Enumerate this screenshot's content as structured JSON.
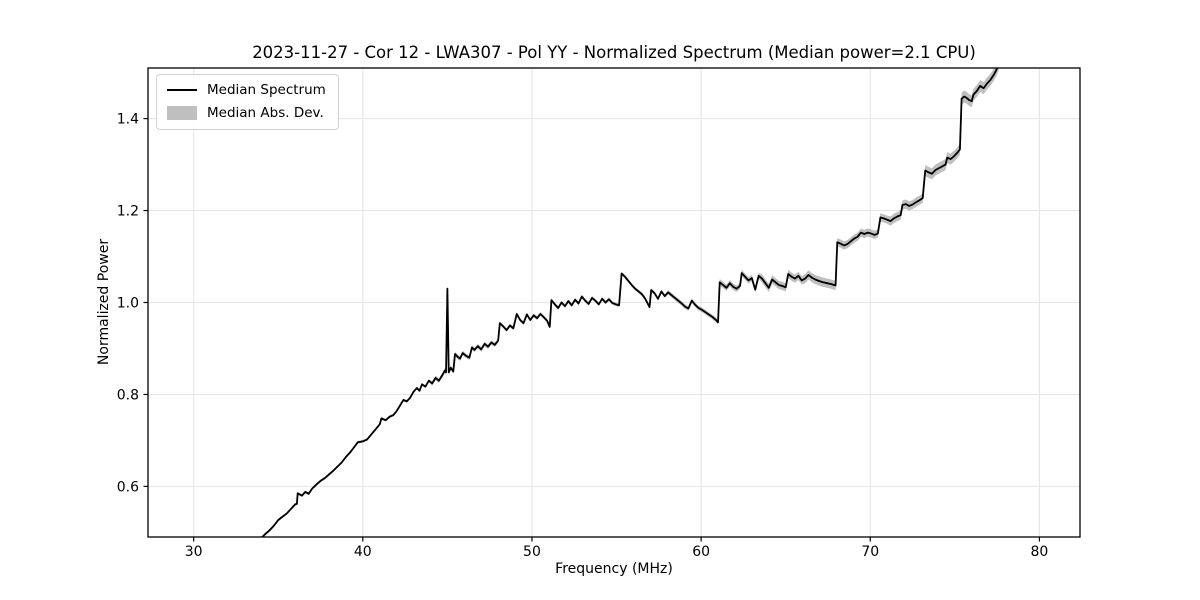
{
  "figure": {
    "title": "2023-11-27 - Cor 12 - LWA307 - Pol YY - Normalized Spectrum (Median power=2.1 CPU)",
    "xlabel": "Frequency (MHz)",
    "ylabel": "Normalized Power",
    "legend": [
      {
        "label": "Median Spectrum",
        "sample": "line",
        "color": "#000000"
      },
      {
        "label": "Median Abs. Dev.",
        "sample": "patch",
        "color": "#bfbfbf"
      }
    ],
    "colors": {
      "line": "#000000",
      "band": "#808080",
      "band_opacity": 0.5,
      "grid": "#e4e4e4",
      "spine": "#000000",
      "background": "#ffffff"
    }
  },
  "chart_data": {
    "type": "line",
    "title": "2023-11-27 - Cor 12 - LWA307 - Pol YY - Normalized Spectrum (Median power=2.1 CPU)",
    "xlabel": "Frequency (MHz)",
    "ylabel": "Normalized Power",
    "median_power_cpu": 2.1,
    "xlim": [
      27.3,
      82.4
    ],
    "ylim": [
      0.49,
      1.51
    ],
    "x_ticks": [
      30,
      40,
      50,
      60,
      70,
      80
    ],
    "y_ticks": [
      0.6,
      0.8,
      1.0,
      1.2,
      1.4
    ],
    "grid": true,
    "legend_position": "upper left",
    "series": [
      {
        "name": "Median Spectrum",
        "points": [
          [
            34.0,
            0.488
          ],
          [
            34.25,
            0.497
          ],
          [
            34.5,
            0.505
          ],
          [
            34.75,
            0.515
          ],
          [
            35.0,
            0.527
          ],
          [
            35.25,
            0.534
          ],
          [
            35.5,
            0.541
          ],
          [
            35.75,
            0.551
          ],
          [
            36.0,
            0.561
          ],
          [
            36.1,
            0.562
          ],
          [
            36.15,
            0.585
          ],
          [
            36.4,
            0.58
          ],
          [
            36.6,
            0.588
          ],
          [
            36.8,
            0.584
          ],
          [
            37.0,
            0.595
          ],
          [
            37.25,
            0.604
          ],
          [
            37.5,
            0.612
          ],
          [
            37.75,
            0.618
          ],
          [
            38.0,
            0.626
          ],
          [
            38.25,
            0.634
          ],
          [
            38.5,
            0.643
          ],
          [
            38.75,
            0.652
          ],
          [
            39.0,
            0.664
          ],
          [
            39.25,
            0.674
          ],
          [
            39.5,
            0.686
          ],
          [
            39.7,
            0.696
          ],
          [
            40.0,
            0.698
          ],
          [
            40.25,
            0.702
          ],
          [
            40.5,
            0.713
          ],
          [
            40.75,
            0.724
          ],
          [
            41.0,
            0.735
          ],
          [
            41.1,
            0.748
          ],
          [
            41.35,
            0.744
          ],
          [
            41.6,
            0.752
          ],
          [
            41.8,
            0.755
          ],
          [
            42.0,
            0.764
          ],
          [
            42.2,
            0.776
          ],
          [
            42.4,
            0.788
          ],
          [
            42.6,
            0.785
          ],
          [
            42.8,
            0.793
          ],
          [
            43.0,
            0.806
          ],
          [
            43.2,
            0.814
          ],
          [
            43.35,
            0.808
          ],
          [
            43.5,
            0.822
          ],
          [
            43.7,
            0.817
          ],
          [
            43.9,
            0.83
          ],
          [
            44.1,
            0.824
          ],
          [
            44.3,
            0.836
          ],
          [
            44.5,
            0.83
          ],
          [
            44.7,
            0.842
          ],
          [
            44.85,
            0.852
          ],
          [
            44.92,
            0.848
          ],
          [
            45.0,
            1.03
          ],
          [
            45.08,
            0.848
          ],
          [
            45.2,
            0.858
          ],
          [
            45.35,
            0.85
          ],
          [
            45.45,
            0.888
          ],
          [
            45.6,
            0.882
          ],
          [
            45.75,
            0.878
          ],
          [
            45.9,
            0.89
          ],
          [
            46.1,
            0.884
          ],
          [
            46.3,
            0.88
          ],
          [
            46.45,
            0.902
          ],
          [
            46.6,
            0.897
          ],
          [
            46.8,
            0.905
          ],
          [
            47.0,
            0.898
          ],
          [
            47.2,
            0.91
          ],
          [
            47.4,
            0.904
          ],
          [
            47.6,
            0.913
          ],
          [
            47.8,
            0.908
          ],
          [
            48.0,
            0.917
          ],
          [
            48.1,
            0.955
          ],
          [
            48.3,
            0.948
          ],
          [
            48.5,
            0.94
          ],
          [
            48.7,
            0.95
          ],
          [
            48.9,
            0.944
          ],
          [
            49.1,
            0.975
          ],
          [
            49.3,
            0.962
          ],
          [
            49.5,
            0.955
          ],
          [
            49.7,
            0.974
          ],
          [
            49.9,
            0.962
          ],
          [
            50.1,
            0.972
          ],
          [
            50.3,
            0.966
          ],
          [
            50.5,
            0.975
          ],
          [
            50.7,
            0.968
          ],
          [
            50.9,
            0.96
          ],
          [
            51.05,
            0.947
          ],
          [
            51.15,
            1.005
          ],
          [
            51.35,
            0.996
          ],
          [
            51.55,
            0.988
          ],
          [
            51.75,
            1.0
          ],
          [
            51.95,
            0.992
          ],
          [
            52.15,
            1.003
          ],
          [
            52.35,
            0.994
          ],
          [
            52.55,
            1.006
          ],
          [
            52.75,
            0.998
          ],
          [
            52.95,
            1.013
          ],
          [
            53.15,
            1.004
          ],
          [
            53.35,
            0.997
          ],
          [
            53.55,
            1.01
          ],
          [
            53.75,
            1.004
          ],
          [
            53.95,
            0.996
          ],
          [
            54.15,
            1.008
          ],
          [
            54.35,
            1.0
          ],
          [
            54.55,
            1.007
          ],
          [
            54.75,
            0.999
          ],
          [
            54.95,
            0.996
          ],
          [
            55.15,
            0.994
          ],
          [
            55.3,
            1.063
          ],
          [
            55.5,
            1.056
          ],
          [
            55.7,
            1.047
          ],
          [
            55.9,
            1.038
          ],
          [
            56.1,
            1.03
          ],
          [
            56.3,
            1.024
          ],
          [
            56.5,
            1.018
          ],
          [
            56.7,
            1.008
          ],
          [
            56.95,
            0.99
          ],
          [
            57.05,
            1.027
          ],
          [
            57.25,
            1.02
          ],
          [
            57.45,
            1.008
          ],
          [
            57.65,
            1.024
          ],
          [
            57.85,
            1.014
          ],
          [
            58.05,
            1.022
          ],
          [
            58.25,
            1.016
          ],
          [
            58.45,
            1.01
          ],
          [
            58.65,
            1.004
          ],
          [
            58.85,
            0.998
          ],
          [
            59.05,
            0.991
          ],
          [
            59.25,
            0.987
          ],
          [
            59.45,
            1.004
          ],
          [
            59.65,
            0.995
          ],
          [
            59.85,
            0.988
          ],
          [
            60.05,
            0.984
          ],
          [
            60.25,
            0.979
          ],
          [
            60.45,
            0.974
          ],
          [
            60.65,
            0.969
          ],
          [
            60.85,
            0.963
          ],
          [
            61.0,
            0.957
          ],
          [
            61.1,
            1.044
          ],
          [
            61.3,
            1.038
          ],
          [
            61.5,
            1.032
          ],
          [
            61.7,
            1.042
          ],
          [
            61.9,
            1.034
          ],
          [
            62.1,
            1.03
          ],
          [
            62.3,
            1.036
          ],
          [
            62.4,
            1.064
          ],
          [
            62.6,
            1.056
          ],
          [
            62.8,
            1.048
          ],
          [
            63.0,
            1.053
          ],
          [
            63.2,
            1.028
          ],
          [
            63.4,
            1.058
          ],
          [
            63.6,
            1.052
          ],
          [
            63.8,
            1.042
          ],
          [
            64.0,
            1.032
          ],
          [
            64.2,
            1.05
          ],
          [
            64.4,
            1.044
          ],
          [
            64.6,
            1.038
          ],
          [
            64.8,
            1.036
          ],
          [
            65.0,
            1.033
          ],
          [
            65.15,
            1.062
          ],
          [
            65.35,
            1.056
          ],
          [
            65.55,
            1.052
          ],
          [
            65.75,
            1.058
          ],
          [
            65.95,
            1.048
          ],
          [
            66.15,
            1.052
          ],
          [
            66.35,
            1.06
          ],
          [
            66.55,
            1.054
          ],
          [
            66.75,
            1.05
          ],
          [
            66.95,
            1.047
          ],
          [
            67.2,
            1.044
          ],
          [
            67.45,
            1.042
          ],
          [
            67.7,
            1.04
          ],
          [
            67.95,
            1.037
          ],
          [
            68.05,
            1.131
          ],
          [
            68.25,
            1.128
          ],
          [
            68.45,
            1.124
          ],
          [
            68.65,
            1.127
          ],
          [
            68.85,
            1.133
          ],
          [
            69.05,
            1.139
          ],
          [
            69.25,
            1.143
          ],
          [
            69.45,
            1.152
          ],
          [
            69.65,
            1.149
          ],
          [
            69.85,
            1.152
          ],
          [
            70.05,
            1.15
          ],
          [
            70.25,
            1.147
          ],
          [
            70.45,
            1.15
          ],
          [
            70.6,
            1.185
          ],
          [
            70.8,
            1.183
          ],
          [
            71.0,
            1.18
          ],
          [
            71.2,
            1.177
          ],
          [
            71.4,
            1.183
          ],
          [
            71.6,
            1.187
          ],
          [
            71.8,
            1.19
          ],
          [
            71.9,
            1.212
          ],
          [
            72.1,
            1.214
          ],
          [
            72.3,
            1.21
          ],
          [
            72.5,
            1.213
          ],
          [
            72.7,
            1.218
          ],
          [
            72.9,
            1.222
          ],
          [
            73.1,
            1.227
          ],
          [
            73.25,
            1.287
          ],
          [
            73.45,
            1.283
          ],
          [
            73.65,
            1.28
          ],
          [
            73.85,
            1.288
          ],
          [
            74.05,
            1.292
          ],
          [
            74.25,
            1.296
          ],
          [
            74.45,
            1.3
          ],
          [
            74.55,
            1.315
          ],
          [
            74.75,
            1.312
          ],
          [
            74.95,
            1.318
          ],
          [
            75.15,
            1.326
          ],
          [
            75.3,
            1.333
          ],
          [
            75.4,
            1.443
          ],
          [
            75.55,
            1.448
          ],
          [
            75.7,
            1.445
          ],
          [
            75.85,
            1.44
          ],
          [
            76.0,
            1.438
          ],
          [
            76.1,
            1.452
          ],
          [
            76.3,
            1.46
          ],
          [
            76.5,
            1.471
          ],
          [
            76.7,
            1.466
          ],
          [
            76.9,
            1.476
          ],
          [
            77.1,
            1.484
          ],
          [
            77.3,
            1.495
          ],
          [
            77.5,
            1.509
          ],
          [
            77.6,
            1.52
          ]
        ]
      },
      {
        "name": "Median Abs. Dev.",
        "mad_segments": [
          [
            27.3,
            44.0,
            0.003
          ],
          [
            44.0,
            48.0,
            0.005
          ],
          [
            48.0,
            58.0,
            0.004
          ],
          [
            58.0,
            61.0,
            0.005
          ],
          [
            61.0,
            63.5,
            0.007
          ],
          [
            63.5,
            66.0,
            0.009
          ],
          [
            66.0,
            68.0,
            0.01
          ],
          [
            68.0,
            71.0,
            0.009
          ],
          [
            71.0,
            73.2,
            0.01
          ],
          [
            73.2,
            75.38,
            0.012
          ],
          [
            75.38,
            78.0,
            0.013
          ]
        ]
      }
    ]
  }
}
